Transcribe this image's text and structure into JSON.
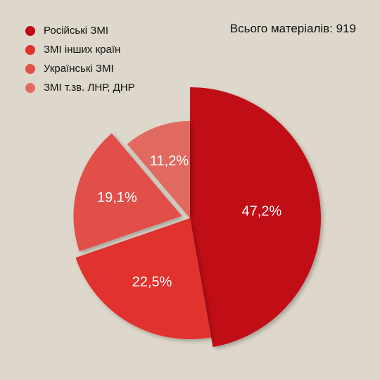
{
  "total": {
    "text": "Всього матеріалів: 919"
  },
  "chart_data": {
    "type": "pie",
    "categories": [
      "Російські ЗМІ",
      "ЗМІ інших країн",
      "Українські ЗМІ",
      "ЗМІ т.зв. ЛНР, ДНР"
    ],
    "values": [
      47.2,
      22.5,
      19.1,
      11.2
    ],
    "value_labels": [
      "47,2%",
      "22,5%",
      "19,1%",
      "11,2%"
    ],
    "colors": [
      "#c00812",
      "#e1312d",
      "#e2504a",
      "#e06b61"
    ],
    "legend_placement": "top-left",
    "exploded_slices": [
      "Російські ЗМІ",
      "Українські ЗМІ"
    ]
  }
}
